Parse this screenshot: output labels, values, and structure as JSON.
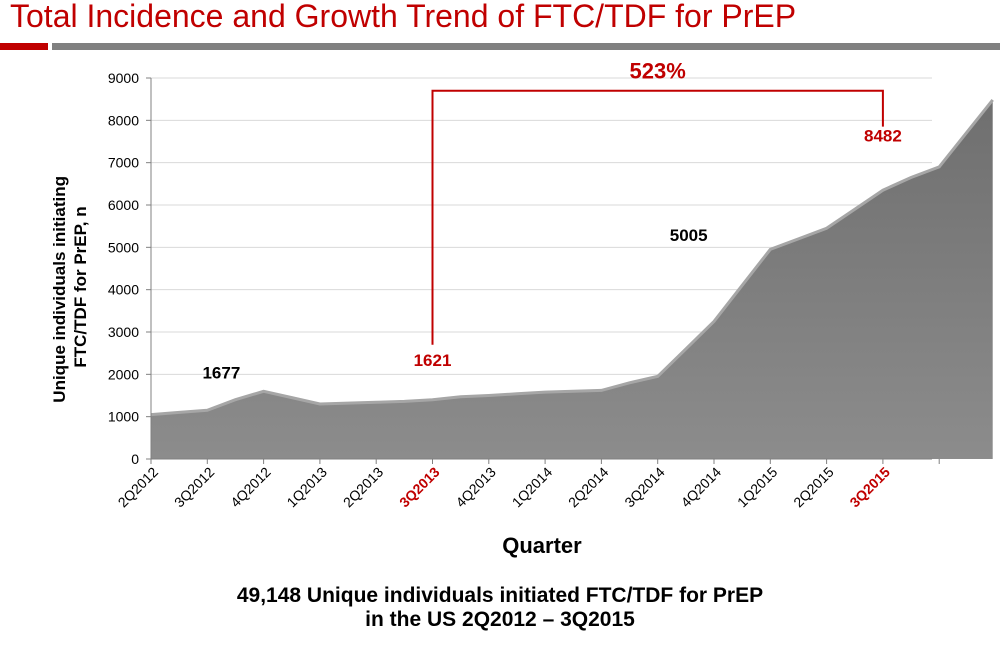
{
  "slide": {
    "title": "Total Incidence and Growth Trend of FTC/TDF for PrEP",
    "caption_line1": "49,148 Unique individuals initiated FTC/TDF for PrEP",
    "caption_line2": "in the US 2Q2012 – 3Q2015"
  },
  "colors": {
    "title": "#c00000",
    "accent": "#c00000",
    "area_fill": "#7f7f7f",
    "area_edge": "#a6a6a6"
  },
  "chart_data": {
    "type": "area",
    "xlabel": "Quarter",
    "ylabel_lines": [
      "Unique individuals initiating",
      "FTC/TDF for PrEP, n"
    ],
    "ylim": [
      0,
      9000
    ],
    "yticks": [
      0,
      1000,
      2000,
      3000,
      4000,
      5000,
      6000,
      7000,
      8000,
      9000
    ],
    "grid": true,
    "legend": "none",
    "categories": [
      "2Q2012",
      "3Q2012",
      "4Q2012",
      "1Q2013",
      "2Q2013",
      "3Q2013",
      "4Q2013",
      "1Q2014",
      "2Q2014",
      "3Q2014",
      "4Q2014",
      "1Q2015",
      "2Q2015",
      "3Q2015"
    ],
    "highlighted_categories": [
      "3Q2013",
      "3Q2015"
    ],
    "series": [
      {
        "x": [
          0,
          0.5,
          1,
          1.5,
          2,
          2.5,
          3,
          3.5,
          4,
          4.5,
          5,
          5.5,
          6,
          6.5,
          7,
          7.5,
          8,
          8.5,
          9,
          9.5,
          10,
          10.5,
          11,
          11.5,
          12,
          12.5,
          13,
          13.5,
          14
        ],
        "values": [
          1050,
          1100,
          1150,
          1400,
          1600,
          1450,
          1300,
          1320,
          1340,
          1360,
          1400,
          1470,
          1500,
          1540,
          1580,
          1600,
          1620,
          1800,
          1950,
          2600,
          3250,
          4100,
          4950,
          5200,
          5450,
          5900,
          6350,
          6650,
          6900
        ]
      }
    ],
    "series_end": {
      "x": 14.95,
      "value": 8482
    },
    "data_labels": [
      {
        "text": "1677",
        "x": 1.25,
        "y": 1900,
        "highlight": false
      },
      {
        "text": "1621",
        "x": 5.0,
        "y": 2200,
        "highlight": true
      },
      {
        "text": "5005",
        "x": 9.55,
        "y": 5150,
        "highlight": false
      },
      {
        "text": "8482",
        "x": 13.0,
        "y": 7500,
        "highlight": true
      }
    ],
    "growth_annotation": {
      "text": "523%",
      "from_x": 5,
      "to_x": 13,
      "bracket_y": 8700,
      "left_bottom_y": 2700,
      "right_bottom_y": 7850
    }
  }
}
